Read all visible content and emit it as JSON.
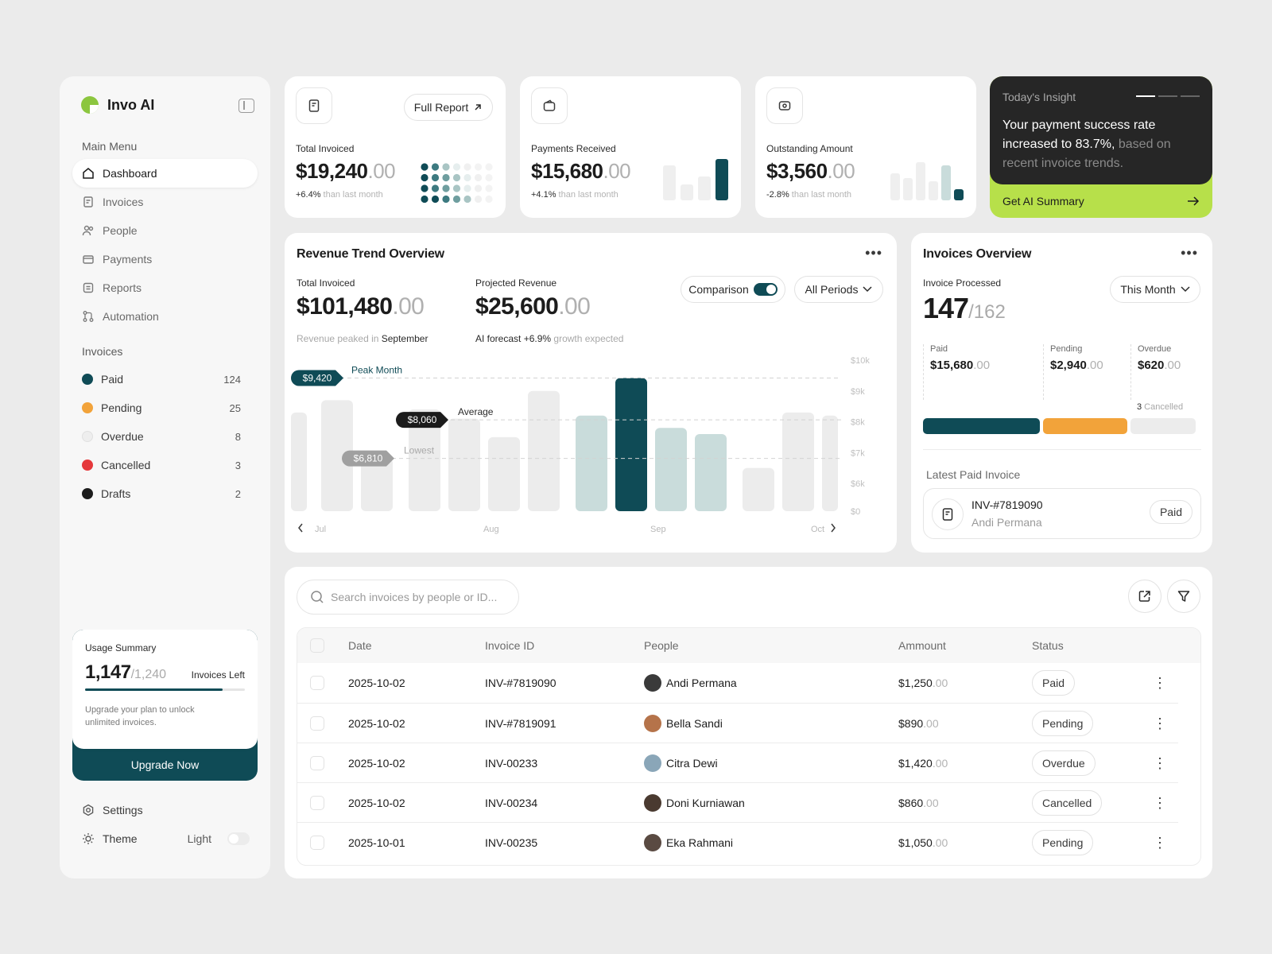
{
  "app": {
    "name": "Invo AI"
  },
  "sidebar": {
    "main_menu_label": "Main Menu",
    "nav": [
      {
        "label": "Dashboard",
        "icon": "home-icon",
        "active": true
      },
      {
        "label": "Invoices",
        "icon": "invoice-icon"
      },
      {
        "label": "People",
        "icon": "people-icon"
      },
      {
        "label": "Payments",
        "icon": "payments-icon"
      },
      {
        "label": "Reports",
        "icon": "reports-icon"
      },
      {
        "label": "Automation",
        "icon": "automation-icon"
      }
    ],
    "invoices_label": "Invoices",
    "invoice_statuses": [
      {
        "label": "Paid",
        "count": "124",
        "color": "#0f4b56"
      },
      {
        "label": "Pending",
        "count": "25",
        "color": "#f2a33a"
      },
      {
        "label": "Overdue",
        "count": "8",
        "color": "#eeeeee"
      },
      {
        "label": "Cancelled",
        "count": "3",
        "color": "#e5383b"
      },
      {
        "label": "Drafts",
        "count": "2",
        "color": "#1c1c1c"
      }
    ],
    "usage": {
      "title": "Usage Summary",
      "used": "1,147",
      "total": "/1,240",
      "left_label": "Invoices Left",
      "progress": 0.86,
      "note": "Upgrade your plan to unlock unlimited invoices.",
      "button": "Upgrade Now"
    },
    "settings_label": "Settings",
    "theme_label": "Theme",
    "theme_value": "Light"
  },
  "stats": [
    {
      "label": "Total Invoiced",
      "value": "$19,240",
      "dec": ".00",
      "change": "+6.4%",
      "change_note": " than last month",
      "action": "Full Report"
    },
    {
      "label": "Payments Received",
      "value": "$15,680",
      "dec": ".00",
      "change": "+4.1%",
      "change_note": " than last month"
    },
    {
      "label": "Outstanding Amount",
      "value": "$3,560",
      "dec": ".00",
      "change": "-2.8%",
      "change_note": " than last month"
    }
  ],
  "insight": {
    "title": "Today's Insight",
    "text_main": "Your payment success rate increased to 83.7%,",
    "text_dim": " based on recent invoice trends.",
    "button": "Get AI Summary"
  },
  "revenue": {
    "title": "Revenue Trend Overview",
    "total_label": "Total Invoiced",
    "total_value": "$101,480",
    "total_dec": ".00",
    "total_note_pre": "Revenue peaked in ",
    "total_note_em": "September",
    "proj_label": "Projected Revenue",
    "proj_value": "$25,600",
    "proj_dec": ".00",
    "proj_note_pre": "AI forecast +6.9%",
    "proj_note_dim": " growth expected",
    "comparison_label": "Comparison",
    "period_label": "All Periods",
    "annotations": {
      "peak_value": "$9,420",
      "peak_label": "Peak Month",
      "avg_value": "$8,060",
      "avg_label": "Average",
      "low_value": "$6,810",
      "low_label": "Lowest"
    }
  },
  "chart_data": {
    "type": "bar",
    "categories": [
      "Jul",
      "Aug",
      "Sep",
      "Oct"
    ],
    "y_ticks": [
      "$10k",
      "$9k",
      "$8k",
      "$7k",
      "$6k",
      "$0"
    ],
    "ylim": [
      0,
      10000
    ],
    "bars": [
      {
        "value": 8300,
        "group": "Jul"
      },
      {
        "value": 8700,
        "group": "Jul"
      },
      {
        "value": 6810,
        "group": "Jul"
      },
      {
        "value": 8400,
        "group": "Aug"
      },
      {
        "value": 8100,
        "group": "Aug"
      },
      {
        "value": 7500,
        "group": "Aug"
      },
      {
        "value": 9000,
        "group": "Aug"
      },
      {
        "value": 8200,
        "group": "Sep",
        "highlight": "light"
      },
      {
        "value": 9420,
        "group": "Sep",
        "highlight": "peak"
      },
      {
        "value": 7800,
        "group": "Sep",
        "highlight": "light"
      },
      {
        "value": 7600,
        "group": "Sep",
        "highlight": "light"
      },
      {
        "value": 6500,
        "group": "Oct"
      },
      {
        "value": 8300,
        "group": "Oct"
      },
      {
        "value": 8200,
        "group": "Oct"
      }
    ],
    "lines": {
      "peak": 9420,
      "average": 8060,
      "lowest": 6810
    },
    "colors": {
      "default": "#ececec",
      "light": "#c9dcdb",
      "peak": "#0f4b56"
    }
  },
  "invoices_overview": {
    "title": "Invoices Overview",
    "processed_label": "Invoice Processed",
    "processed": "147",
    "processed_total": "/162",
    "period": "This Month",
    "breakdown": [
      {
        "label": "Paid",
        "value": "$15,680",
        "dec": ".00",
        "color": "#0f4b56"
      },
      {
        "label": "Pending",
        "value": "$2,940",
        "dec": ".00",
        "color": "#f2a33a"
      },
      {
        "label": "Overdue",
        "value": "$620",
        "dec": ".00",
        "color": "#ececec"
      }
    ],
    "cancelled_count": "3",
    "cancelled_label": " Cancelled",
    "latest_label": "Latest Paid Invoice",
    "latest_id": "INV-#7819090",
    "latest_name": "Andi Permana",
    "latest_status": "Paid"
  },
  "table": {
    "search_placeholder": "Search invoices by people or ID...",
    "headers": [
      "Date",
      "Invoice ID",
      "People",
      "Ammount",
      "Status"
    ],
    "rows": [
      {
        "date": "2025-10-02",
        "id": "INV-#7819090",
        "name": "Andi Permana",
        "amount": "$1,250",
        "dec": ".00",
        "status": "Paid",
        "avatar": "#3a3a3a"
      },
      {
        "date": "2025-10-02",
        "id": "INV-#7819091",
        "name": "Bella Sandi",
        "amount": "$890",
        "dec": ".00",
        "status": "Pending",
        "avatar": "#b5734a"
      },
      {
        "date": "2025-10-02",
        "id": "INV-00233",
        "name": "Citra Dewi",
        "amount": "$1,420",
        "dec": ".00",
        "status": "Overdue",
        "avatar": "#8aa6b8"
      },
      {
        "date": "2025-10-02",
        "id": "INV-00234",
        "name": "Doni Kurniawan",
        "amount": "$860",
        "dec": ".00",
        "status": "Cancelled",
        "avatar": "#4a3a30"
      },
      {
        "date": "2025-10-01",
        "id": "INV-00235",
        "name": "Eka Rahmani",
        "amount": "$1,050",
        "dec": ".00",
        "status": "Pending",
        "avatar": "#5a4a42"
      }
    ]
  }
}
